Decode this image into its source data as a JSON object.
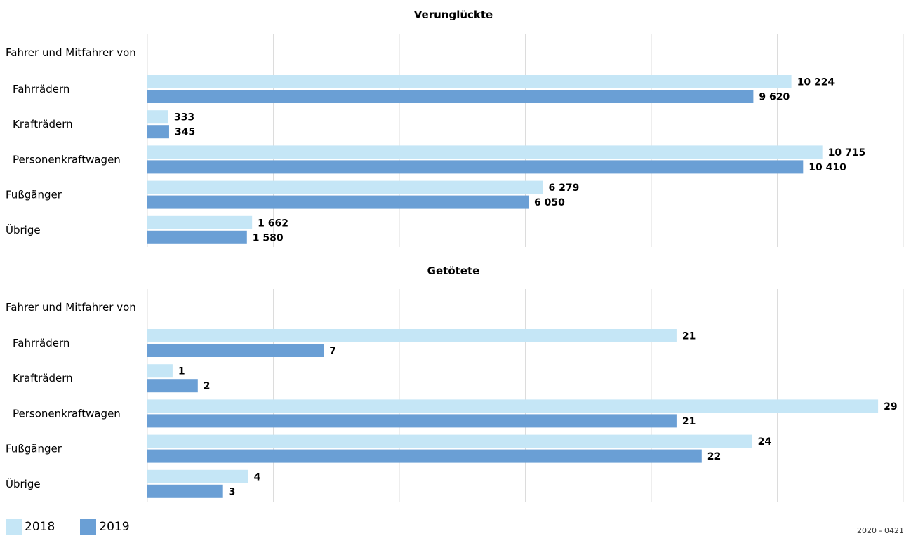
{
  "chart_data": [
    {
      "type": "bar",
      "orientation": "horizontal",
      "title": "Verunglückte",
      "group_header": "Fahrer und Mitfahrer von",
      "categories": [
        "Fahrrädern",
        "Krafträdern",
        "Personenkraftwagen",
        "Fußgänger",
        "Übrige"
      ],
      "category_indented": [
        true,
        true,
        true,
        false,
        false
      ],
      "series": [
        {
          "name": "2018",
          "values": [
            10224,
            333,
            10715,
            6279,
            1662
          ],
          "labels": [
            "10 224",
            "333",
            "10 715",
            "6 279",
            "1 662"
          ]
        },
        {
          "name": "2019",
          "values": [
            9620,
            345,
            10410,
            6050,
            1580
          ],
          "labels": [
            "9 620",
            "345",
            "10 410",
            "6 050",
            "1 580"
          ]
        }
      ],
      "xlim": [
        0,
        12000
      ],
      "grid": true
    },
    {
      "type": "bar",
      "orientation": "horizontal",
      "title": "Getötete",
      "group_header": "Fahrer und Mitfahrer von",
      "categories": [
        "Fahrrädern",
        "Krafträdern",
        "Personenkraftwagen",
        "Fußgänger",
        "Übrige"
      ],
      "category_indented": [
        true,
        true,
        true,
        false,
        false
      ],
      "series": [
        {
          "name": "2018",
          "values": [
            21,
            1,
            29,
            24,
            4
          ],
          "labels": [
            "21",
            "1",
            "29",
            "24",
            "4"
          ]
        },
        {
          "name": "2019",
          "values": [
            7,
            2,
            21,
            22,
            3
          ],
          "labels": [
            "7",
            "2",
            "21",
            "22",
            "3"
          ]
        }
      ],
      "xlim": [
        0,
        30
      ],
      "grid": true
    }
  ],
  "colors": {
    "2018": "#c5e6f6",
    "2019": "#6a9fd5",
    "grid": "#dcdcdc"
  },
  "legend": [
    {
      "label": "2018",
      "color": "#c5e6f6"
    },
    {
      "label": "2019",
      "color": "#6a9fd5"
    }
  ],
  "legend_position": "bottom-left",
  "source_id": "2020 - 0421"
}
